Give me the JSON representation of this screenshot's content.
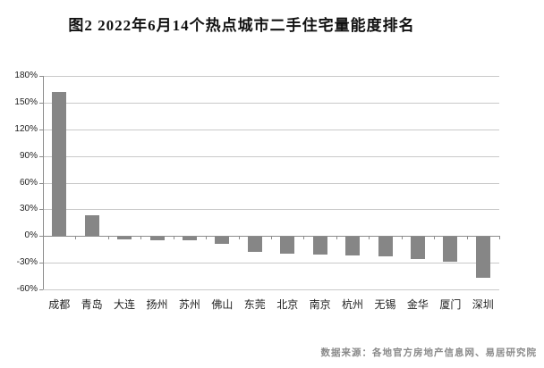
{
  "title": "图2  2022年6月14个热点城市二手住宅量能度排名",
  "source_note": "数据来源：各地官方房地产信息网、易居研究院",
  "colors": {
    "bar": "#868686",
    "gridline": "#c9c9c9",
    "axis": "#8c8c8c",
    "title_text": "#111111",
    "source_text": "#8a8a8a"
  },
  "chart_data": {
    "type": "bar",
    "title": "图2  2022年6月14个热点城市二手住宅量能度排名",
    "categories": [
      "成都",
      "青岛",
      "大连",
      "扬州",
      "苏州",
      "佛山",
      "东莞",
      "北京",
      "南京",
      "杭州",
      "无锡",
      "金华",
      "厦门",
      "深圳"
    ],
    "values": [
      162,
      23,
      -3,
      -4,
      -4,
      -8,
      -17,
      -19,
      -20,
      -21,
      -22,
      -25,
      -28,
      -46
    ],
    "unit": "%",
    "xlabel": "",
    "ylabel": "",
    "ylim": [
      -60,
      180
    ],
    "ytick_step": 30,
    "ytick_labels": [
      "180%",
      "150%",
      "120%",
      "90%",
      "60%",
      "30%",
      "0%",
      "-30%",
      "-60%"
    ],
    "grid": true,
    "legend_position": "none"
  }
}
